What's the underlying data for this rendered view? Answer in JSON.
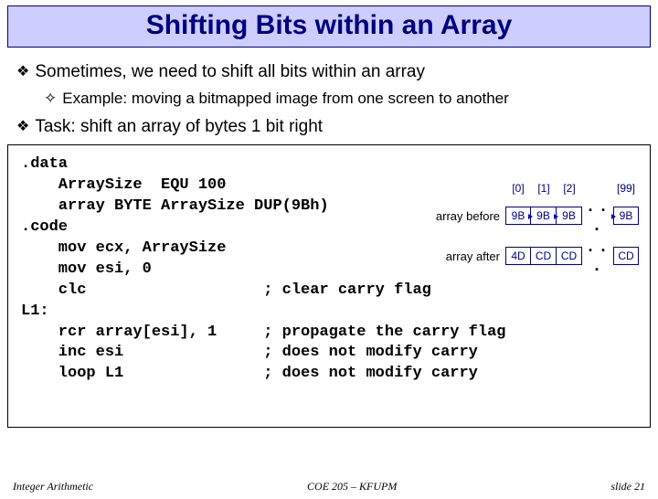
{
  "title": "Shifting Bits within an Array",
  "bullets": {
    "b1a": "Sometimes, we need to shift all bits within an array",
    "b2a": "Example: moving a bitmapped image from one screen to another",
    "b1b": "Task: shift an array of bytes 1 bit right"
  },
  "code": {
    "l1": ".data",
    "l2": "    ArraySize  EQU 100",
    "l3": "    array BYTE ArraySize DUP(9Bh)",
    "l4": ".code",
    "l5": "    mov ecx, ArraySize",
    "l6": "    mov esi, 0",
    "l7": "    clc                   ; clear carry flag",
    "l8": "L1:",
    "l9": "    rcr array[esi], 1     ; propagate the carry flag",
    "l10": "    inc esi               ; does not modify carry",
    "l11": "    loop L1               ; does not modify carry"
  },
  "fig": {
    "idx": [
      "[0]",
      "[1]",
      "[2]",
      "[99]"
    ],
    "before_label": "array before",
    "after_label": "array after",
    "before": [
      "9B",
      "9B",
      "9B",
      "9B"
    ],
    "after": [
      "4D",
      "CD",
      "CD",
      "CD"
    ],
    "dots": ". . ."
  },
  "footer": {
    "left": "Integer Arithmetic",
    "mid": "COE 205 – KFUPM",
    "right": "slide 21"
  }
}
